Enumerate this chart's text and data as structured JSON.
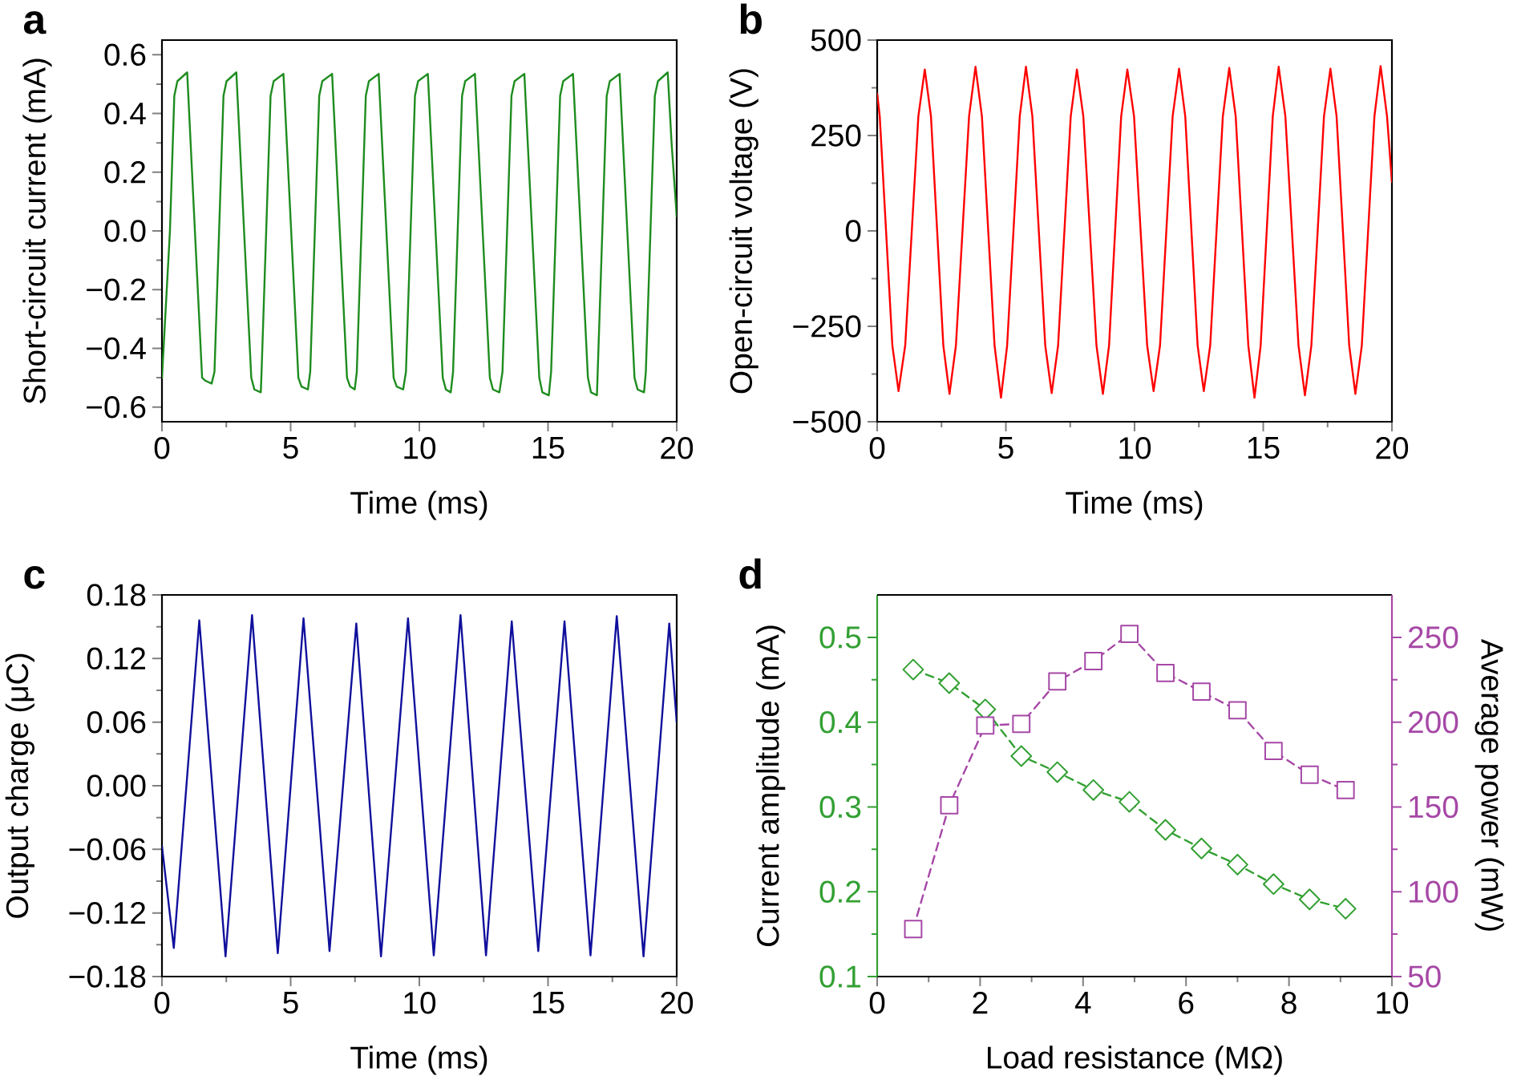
{
  "chart_data": [
    {
      "type": "line",
      "title": "a",
      "xlabel": "Time (ms)",
      "ylabel": "Short-circuit current (mA)",
      "xlim": [
        0,
        20
      ],
      "xticks": [
        0,
        5,
        10,
        15,
        20
      ],
      "ylim": [
        -0.65,
        0.65
      ],
      "yticks": [
        {
          "value": -0.6,
          "label": "−0.6"
        },
        {
          "value": -0.4,
          "label": "−0.4"
        },
        {
          "value": -0.2,
          "label": "−0.2"
        },
        {
          "value": 0,
          "label": "0.0"
        },
        0.2,
        0.4,
        0.6
      ],
      "x": [
        0,
        0.31,
        0.48,
        0.6,
        0.98,
        1.28,
        1.56,
        1.68,
        1.93,
        2.04,
        2.22,
        2.39,
        2.51,
        2.89,
        3.19,
        3.47,
        3.59,
        3.84,
        3.87,
        4.05,
        4.22,
        4.34,
        4.72,
        5.02,
        5.3,
        5.42,
        5.67,
        5.76,
        5.94,
        6.11,
        6.23,
        6.61,
        6.91,
        7.19,
        7.31,
        7.49,
        7.57,
        7.75,
        7.92,
        8.04,
        8.42,
        8.72,
        9.0,
        9.12,
        9.37,
        9.48,
        9.66,
        9.83,
        9.95,
        10.33,
        10.63,
        10.91,
        11.03,
        11.22,
        11.31,
        11.49,
        11.66,
        11.78,
        12.16,
        12.46,
        12.74,
        12.86,
        13.11,
        13.23,
        13.41,
        13.58,
        13.7,
        14.08,
        14.38,
        14.66,
        14.78,
        15.03,
        15.12,
        15.3,
        15.47,
        15.59,
        15.97,
        16.27,
        16.55,
        16.67,
        16.9,
        16.93,
        17.11,
        17.28,
        17.4,
        17.78,
        18.08,
        18.36,
        18.48,
        18.73,
        18.8,
        18.98,
        19.15,
        19.27,
        19.65,
        19.8,
        20
      ],
      "series": [
        {
          "color": "#1e8c1e",
          "values": [
            -0.5,
            0,
            0.46,
            0.51,
            0.54,
            0,
            -0.5,
            -0.51,
            -0.52,
            -0.48,
            0,
            0.46,
            0.51,
            0.54,
            0,
            -0.5,
            -0.54,
            -0.55,
            -0.48,
            0,
            0.46,
            0.51,
            0.535,
            0,
            -0.5,
            -0.53,
            -0.54,
            -0.48,
            0,
            0.46,
            0.51,
            0.535,
            0,
            -0.5,
            -0.53,
            -0.54,
            -0.48,
            0,
            0.46,
            0.51,
            0.535,
            0,
            -0.5,
            -0.53,
            -0.54,
            -0.48,
            0,
            0.46,
            0.51,
            0.535,
            0,
            -0.5,
            -0.54,
            -0.55,
            -0.48,
            0,
            0.46,
            0.51,
            0.535,
            0,
            -0.5,
            -0.54,
            -0.55,
            -0.48,
            0,
            0.46,
            0.51,
            0.535,
            0,
            -0.5,
            -0.55,
            -0.56,
            -0.48,
            0,
            0.46,
            0.51,
            0.535,
            0,
            -0.5,
            -0.55,
            -0.56,
            -0.48,
            0,
            0.46,
            0.51,
            0.535,
            0,
            -0.5,
            -0.54,
            -0.55,
            -0.48,
            0,
            0.46,
            0.51,
            0.54,
            0.3,
            0.05
          ]
        }
      ]
    },
    {
      "type": "line",
      "title": "b",
      "xlabel": "Time (ms)",
      "ylabel": "Open-circuit voltage (V)",
      "xlim": [
        0,
        20
      ],
      "xticks": [
        0,
        5,
        10,
        15,
        20
      ],
      "ylim": [
        -500,
        500
      ],
      "yticks": [
        {
          "value": -500,
          "label": "−500"
        },
        {
          "value": -250,
          "label": "−250"
        },
        0,
        250,
        500
      ],
      "x": [
        0,
        0.1,
        0.59,
        0.83,
        1.09,
        1.6,
        1.85,
        2.09,
        2.57,
        2.81,
        3.06,
        3.57,
        3.82,
        4.07,
        4.56,
        4.81,
        5.05,
        5.54,
        5.78,
        6.03,
        6.53,
        6.78,
        7.03,
        7.52,
        7.76,
        8.01,
        8.52,
        8.77,
        9.01,
        9.48,
        9.72,
        9.98,
        10.49,
        10.74,
        10.99,
        11.48,
        11.73,
        11.97,
        12.45,
        12.69,
        12.94,
        13.43,
        13.68,
        13.93,
        14.42,
        14.66,
        14.9,
        15.37,
        15.6,
        15.86,
        16.37,
        16.62,
        16.87,
        17.36,
        17.61,
        17.85,
        18.34,
        18.58,
        18.83,
        19.32,
        19.56,
        19.81,
        20
      ],
      "series": [
        {
          "color": "#ff0000",
          "values": [
            360,
            300,
            -300,
            -420,
            -300,
            300,
            423,
            300,
            -300,
            -427,
            -300,
            300,
            430,
            300,
            -300,
            -437,
            -300,
            300,
            430,
            300,
            -300,
            -425,
            -300,
            300,
            423,
            300,
            -300,
            -427,
            -300,
            300,
            423,
            300,
            -300,
            -420,
            -300,
            300,
            425,
            300,
            -300,
            -420,
            -300,
            300,
            427,
            300,
            -300,
            -437,
            -300,
            300,
            430,
            300,
            -300,
            -431,
            -300,
            300,
            425,
            300,
            -300,
            -427,
            -300,
            300,
            432,
            300,
            128
          ]
        }
      ]
    },
    {
      "type": "line",
      "title": "c",
      "xlabel": "Time (ms)",
      "ylabel": "Output charge (μC)",
      "xlim": [
        0,
        20
      ],
      "xticks": [
        0,
        5,
        10,
        15,
        20
      ],
      "ylim": [
        -0.18,
        0.18
      ],
      "yticks": [
        {
          "value": -0.18,
          "label": "−0.18"
        },
        {
          "value": -0.12,
          "label": "−0.12"
        },
        {
          "value": -0.06,
          "label": "−0.06"
        },
        {
          "value": 0,
          "label": "0.00"
        },
        0.06,
        0.12,
        0.18
      ],
      "x": [
        0,
        0.46,
        1.45,
        2.47,
        3.5,
        4.5,
        5.5,
        6.51,
        7.55,
        8.51,
        9.56,
        10.56,
        11.6,
        12.59,
        13.59,
        14.62,
        15.64,
        16.65,
        17.67,
        18.71,
        19.71,
        20
      ],
      "series": [
        {
          "color": "#10109c",
          "values": [
            -0.057,
            -0.153,
            0.156,
            -0.161,
            0.161,
            -0.158,
            0.158,
            -0.156,
            0.153,
            -0.161,
            0.158,
            -0.16,
            0.161,
            -0.16,
            0.155,
            -0.156,
            0.155,
            -0.16,
            0.16,
            -0.161,
            0.153,
            0.06
          ]
        }
      ]
    },
    {
      "type": "line",
      "title": "d",
      "xlabel": "Load resistance (MΩ)",
      "ylabel": "Current amplitude (mA)",
      "y2label": "Average power (mW)",
      "xlim": [
        0,
        10
      ],
      "xticks": [
        0,
        2,
        4,
        6,
        8,
        10
      ],
      "ylim": [
        0.1,
        0.55
      ],
      "yticks": [
        0.1,
        0.2,
        0.3,
        0.4,
        0.5
      ],
      "y2lim": [
        50,
        275
      ],
      "y2ticks": [
        50,
        100,
        150,
        200,
        250
      ],
      "line_style": "dashed",
      "x": [
        0.7,
        1.4,
        2.1,
        2.8,
        3.5,
        4.2,
        4.9,
        5.6,
        6.3,
        7,
        7.7,
        8.4,
        9.1
      ],
      "series": [
        {
          "color": "#33a033",
          "marker": "diamond",
          "values": [
            0.462,
            0.446,
            0.415,
            0.36,
            0.341,
            0.32,
            0.306,
            0.273,
            0.251,
            0.232,
            0.209,
            0.191,
            0.18
          ]
        },
        {
          "color": "#a648a6",
          "marker": "square",
          "axis": "y2",
          "values": [
            78,
            151,
            198,
            199,
            224,
            236,
            252,
            229,
            218,
            207,
            183,
            169,
            160
          ]
        }
      ]
    }
  ]
}
